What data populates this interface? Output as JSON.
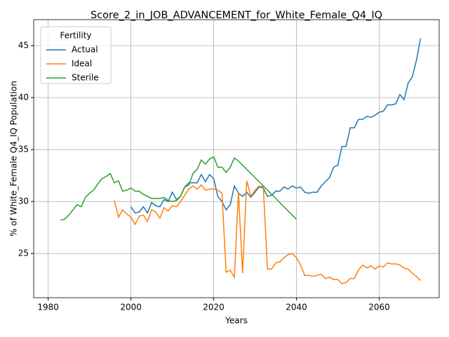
{
  "chart_data": {
    "type": "line",
    "title": "Score_2_in_JOB_ADVANCEMENT_for_White_Female_Q4_IQ",
    "xlabel": "Years",
    "ylabel": "% of White_Female Q4_IQ Population",
    "legend_title": "Fertility",
    "legend": "upper left",
    "x": [
      1983,
      1984,
      1985,
      1986,
      1987,
      1988,
      1989,
      1990,
      1991,
      1992,
      1993,
      1994,
      1995,
      1996,
      1997,
      1998,
      1999,
      2000,
      2001,
      2002,
      2003,
      2004,
      2005,
      2006,
      2007,
      2008,
      2009,
      2010,
      2011,
      2012,
      2013,
      2014,
      2015,
      2016,
      2017,
      2018,
      2019,
      2020,
      2021,
      2022,
      2023,
      2024,
      2025,
      2026,
      2027,
      2028,
      2029,
      2030,
      2031,
      2032,
      2033,
      2034,
      2035,
      2036,
      2037,
      2038,
      2039,
      2040,
      2041,
      2042,
      2043,
      2044,
      2045,
      2046,
      2047,
      2048,
      2049,
      2050,
      2051,
      2052,
      2053,
      2054,
      2055,
      2056,
      2057,
      2058,
      2059,
      2060,
      2061,
      2062,
      2063,
      2064,
      2065,
      2066,
      2067,
      2068,
      2069,
      2070
    ],
    "series": [
      {
        "name": "Actual",
        "color": "#1f77b4",
        "values": [
          null,
          null,
          null,
          null,
          null,
          null,
          null,
          null,
          null,
          null,
          null,
          null,
          null,
          null,
          null,
          null,
          null,
          29.5,
          28.9,
          29.0,
          29.5,
          28.9,
          29.9,
          29.6,
          29.5,
          30.2,
          30.0,
          30.9,
          30.2,
          30.5,
          31.4,
          31.8,
          31.8,
          31.8,
          32.6,
          31.9,
          32.6,
          32.2,
          30.5,
          30.0,
          29.2,
          29.7,
          31.5,
          30.8,
          30.5,
          30.9,
          30.4,
          30.9,
          31.4,
          31.3,
          30.5,
          30.6,
          31.0,
          31.0,
          31.4,
          31.2,
          31.5,
          31.3,
          31.4,
          30.9,
          30.8,
          30.9,
          30.9,
          31.5,
          31.9,
          32.3,
          33.3,
          33.5,
          35.3,
          35.3,
          37.1,
          37.1,
          37.9,
          37.9,
          38.2,
          38.1,
          38.3,
          38.6,
          38.7,
          39.3,
          39.3,
          39.4,
          40.3,
          39.8,
          41.4,
          42.0,
          43.6,
          45.7
        ]
      },
      {
        "name": "Ideal",
        "color": "#ff7f0e",
        "values": [
          null,
          null,
          null,
          null,
          null,
          null,
          null,
          null,
          null,
          null,
          null,
          null,
          null,
          30.1,
          28.5,
          29.2,
          28.8,
          28.5,
          27.8,
          28.6,
          28.7,
          28.1,
          29.2,
          29.0,
          28.4,
          29.4,
          29.1,
          29.6,
          29.5,
          30.0,
          30.6,
          31.2,
          31.5,
          31.2,
          31.6,
          31.1,
          31.2,
          31.2,
          31.1,
          30.8,
          23.2,
          23.4,
          22.7,
          30.9,
          23.1,
          32.0,
          30.5,
          31.1,
          31.5,
          31.4,
          23.5,
          23.5,
          24.1,
          24.2,
          24.6,
          24.9,
          25.0,
          24.6,
          23.9,
          22.9,
          22.9,
          22.8,
          22.9,
          23.0,
          22.6,
          22.7,
          22.5,
          22.5,
          22.1,
          22.2,
          22.6,
          22.6,
          23.4,
          23.9,
          23.6,
          23.8,
          23.5,
          23.8,
          23.7,
          24.1,
          24.0,
          24.0,
          23.9,
          23.6,
          23.5,
          23.1,
          22.8,
          22.4
        ]
      },
      {
        "name": "Sterile",
        "color": "#2ca02c",
        "values": [
          28.2,
          28.3,
          28.7,
          29.2,
          29.7,
          29.5,
          30.4,
          30.8,
          31.1,
          31.7,
          32.2,
          32.4,
          32.7,
          31.8,
          32.0,
          31.0,
          31.1,
          31.3,
          31.0,
          31.0,
          30.7,
          30.5,
          30.3,
          30.3,
          30.3,
          30.4,
          30.1,
          30.0,
          30.1,
          30.5,
          31.4,
          31.6,
          32.7,
          33.1,
          34.0,
          33.6,
          34.1,
          34.3,
          33.3,
          33.3,
          32.8,
          33.3,
          34.2,
          33.9,
          33.5,
          33.1,
          32.7,
          32.3,
          31.9,
          31.5,
          31.1,
          30.7,
          30.3,
          29.9,
          29.5,
          29.1,
          28.7,
          28.3,
          null,
          null,
          null,
          null,
          null,
          null,
          null,
          null,
          null,
          null,
          null,
          null,
          null,
          null,
          null,
          null,
          null,
          null,
          null,
          null,
          null,
          null,
          null,
          null,
          null,
          null,
          null,
          null,
          null,
          null
        ]
      }
    ],
    "xlim": [
      1976.5,
      2074.5
    ],
    "xticks": [
      1980,
      2000,
      2020,
      2040,
      2060
    ],
    "ylim": [
      20.75,
      47.5
    ],
    "yticks": [
      25,
      30,
      35,
      40,
      45
    ],
    "grid": true
  }
}
